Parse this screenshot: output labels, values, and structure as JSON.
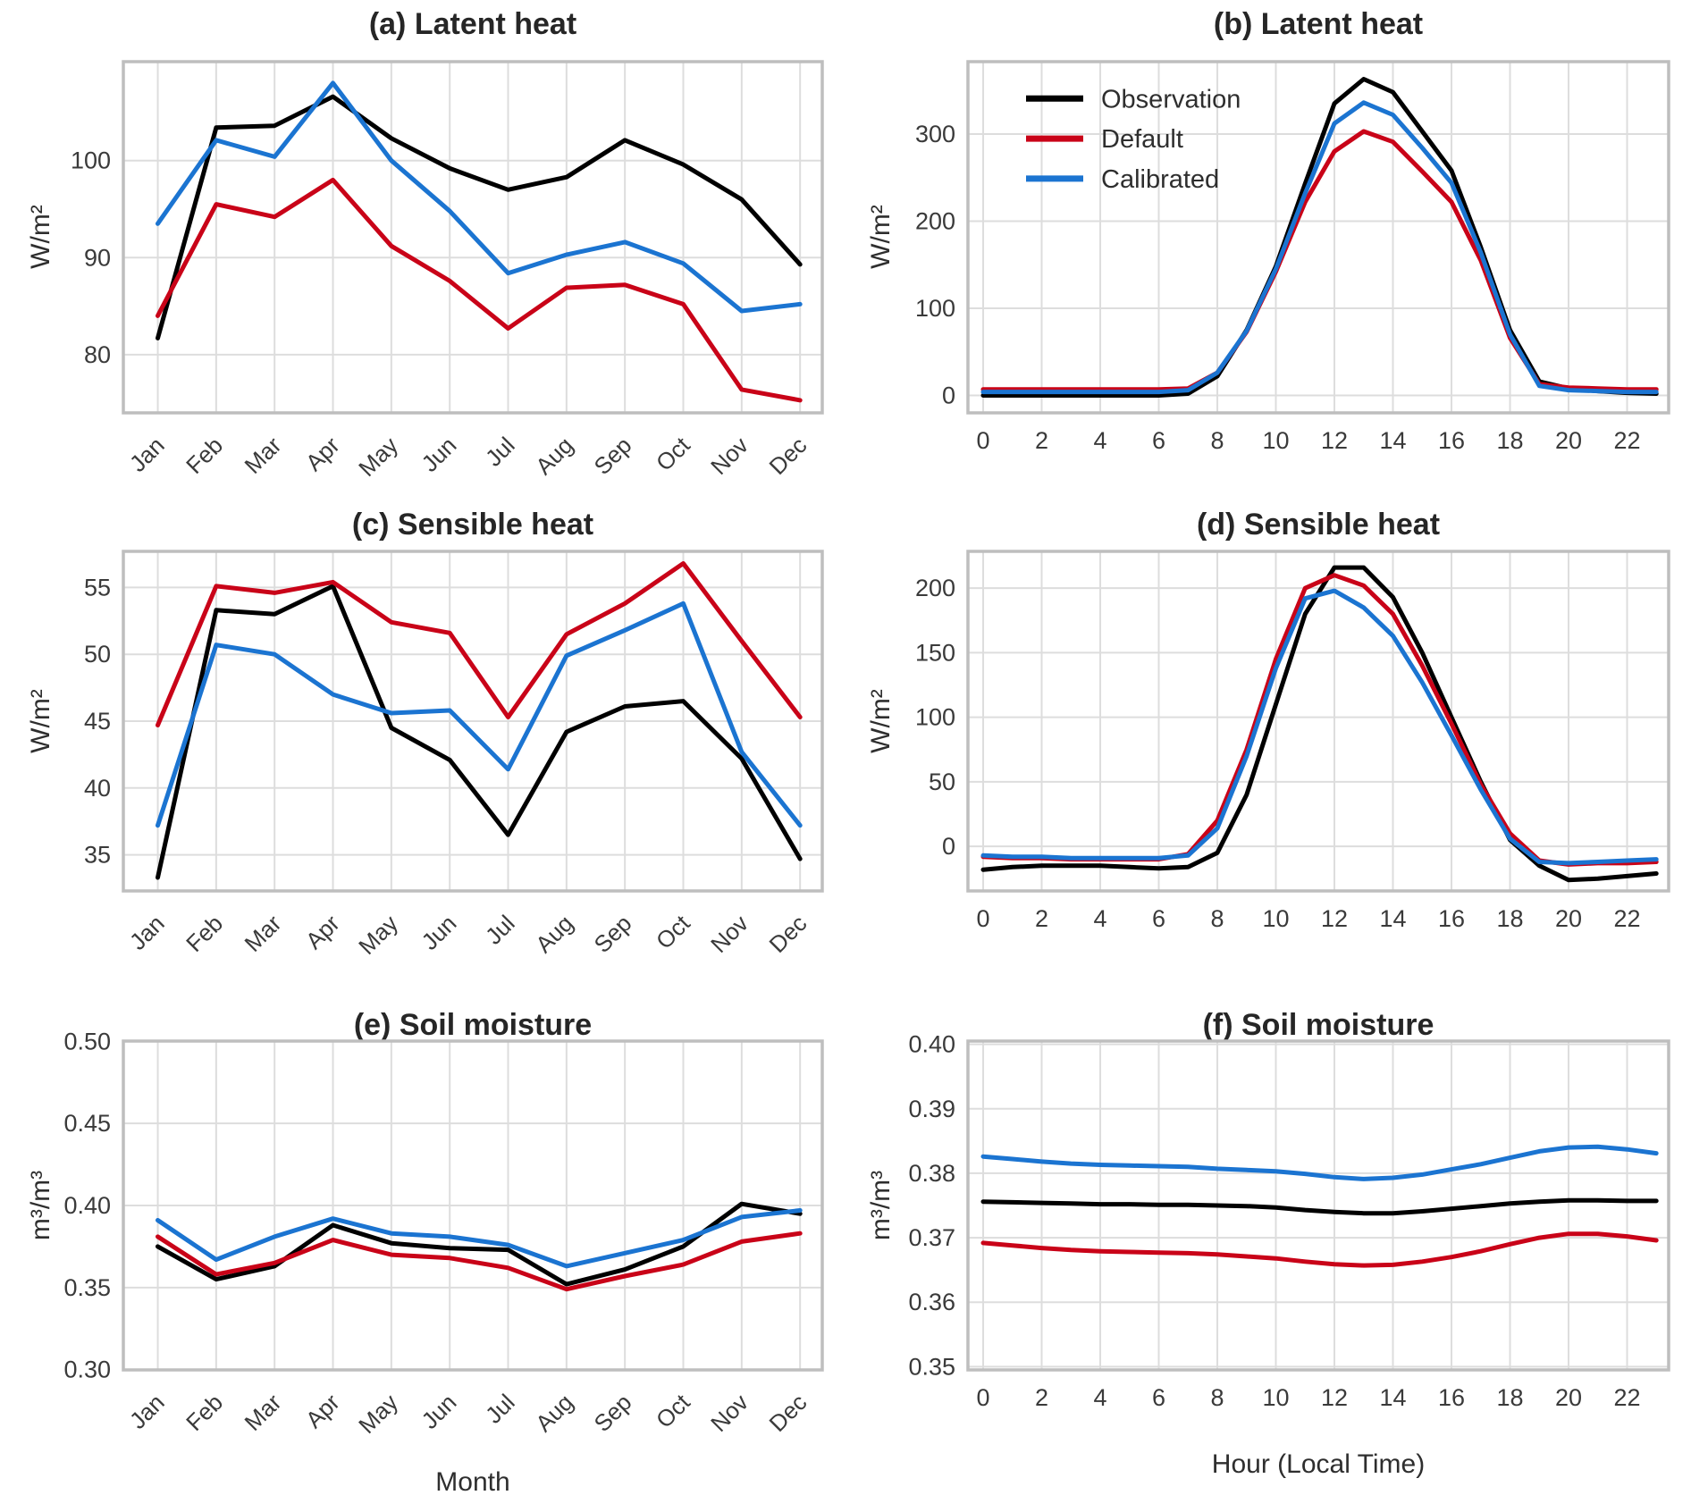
{
  "figure": {
    "colors": {
      "observation": "#000000",
      "default": "#c90318",
      "calibrated": "#1b74d1"
    },
    "grid_color": "#dddddd",
    "frame_color": "#bebebe",
    "tick_color": "#3a3a3a",
    "legend": {
      "items": [
        {
          "label": "Observation",
          "color": "observation"
        },
        {
          "label": "Default",
          "color": "default"
        },
        {
          "label": "Calibrated",
          "color": "calibrated"
        }
      ]
    }
  },
  "chart_data": [
    {
      "id": "a",
      "type": "line",
      "title": "(a) Latent heat",
      "ylabel": "W/m²",
      "xlabel": "",
      "x_mode": "month",
      "categories": [
        "Jan",
        "Feb",
        "Mar",
        "Apr",
        "May",
        "Jun",
        "Jul",
        "Aug",
        "Sep",
        "Oct",
        "Nov",
        "Dec"
      ],
      "xlim": [
        -0.59,
        11.38
      ],
      "ylim": [
        74.0,
        110.2
      ],
      "yticks": [
        80,
        90,
        100
      ],
      "ytick_labels": [
        "80",
        "90",
        "100"
      ],
      "legend": false,
      "series": [
        {
          "name": "Observation",
          "color": "observation",
          "values": [
            81.7,
            103.4,
            103.6,
            106.6,
            102.3,
            99.2,
            97.0,
            98.3,
            102.1,
            99.6,
            96.0,
            89.3
          ]
        },
        {
          "name": "Default",
          "color": "default",
          "values": [
            84.0,
            95.5,
            94.2,
            98.0,
            91.2,
            87.6,
            82.7,
            86.9,
            87.2,
            85.2,
            76.4,
            75.3
          ]
        },
        {
          "name": "Calibrated",
          "color": "calibrated",
          "values": [
            93.5,
            102.1,
            100.4,
            108.0,
            100.0,
            94.8,
            88.4,
            90.3,
            91.6,
            89.4,
            84.5,
            85.2
          ]
        }
      ]
    },
    {
      "id": "b",
      "type": "line",
      "title": "(b) Latent heat",
      "ylabel": "W/m²",
      "xlabel": "",
      "x_mode": "hour",
      "x": [
        0,
        1,
        2,
        3,
        4,
        5,
        6,
        7,
        8,
        9,
        10,
        11,
        12,
        13,
        14,
        15,
        16,
        17,
        18,
        19,
        20,
        21,
        22,
        23
      ],
      "xticks": [
        0,
        2,
        4,
        6,
        8,
        10,
        12,
        14,
        16,
        18,
        20,
        22
      ],
      "xtick_labels": [
        "0",
        "2",
        "4",
        "6",
        "8",
        "10",
        "12",
        "14",
        "16",
        "18",
        "20",
        "22"
      ],
      "xlim": [
        -0.52,
        23.42
      ],
      "ylim": [
        -20,
        383
      ],
      "yticks": [
        0,
        100,
        200,
        300
      ],
      "ytick_labels": [
        "0",
        "100",
        "200",
        "300"
      ],
      "legend": true,
      "series": [
        {
          "name": "Observation",
          "color": "observation",
          "values": [
            0,
            0,
            0,
            0,
            0,
            0,
            0,
            2,
            22,
            75,
            148,
            243,
            335,
            363,
            348,
            303,
            258,
            170,
            75,
            16,
            8,
            5,
            3,
            2
          ]
        },
        {
          "name": "Default",
          "color": "default",
          "values": [
            7,
            7,
            7,
            7,
            7,
            7,
            7,
            8,
            26,
            73,
            142,
            222,
            280,
            303,
            291,
            257,
            222,
            155,
            66,
            13,
            9,
            8,
            7,
            7
          ]
        },
        {
          "name": "Calibrated",
          "color": "calibrated",
          "values": [
            4,
            4,
            4,
            4,
            4,
            4,
            4,
            6,
            26,
            74,
            145,
            232,
            312,
            336,
            322,
            284,
            244,
            164,
            70,
            11,
            6,
            5,
            4,
            4
          ]
        }
      ]
    },
    {
      "id": "c",
      "type": "line",
      "title": "(c) Sensible heat",
      "ylabel": "W/m²",
      "xlabel": "",
      "x_mode": "month",
      "categories": [
        "Jan",
        "Feb",
        "Mar",
        "Apr",
        "May",
        "Jun",
        "Jul",
        "Aug",
        "Sep",
        "Oct",
        "Nov",
        "Dec"
      ],
      "xlim": [
        -0.59,
        11.38
      ],
      "ylim": [
        32.3,
        57.7
      ],
      "yticks": [
        35,
        40,
        45,
        50,
        55
      ],
      "ytick_labels": [
        "35",
        "40",
        "45",
        "50",
        "55"
      ],
      "legend": false,
      "series": [
        {
          "name": "Observation",
          "color": "observation",
          "values": [
            33.3,
            53.3,
            53.0,
            55.1,
            44.5,
            42.1,
            36.5,
            44.2,
            46.1,
            46.5,
            42.2,
            34.7
          ]
        },
        {
          "name": "Default",
          "color": "default",
          "values": [
            44.7,
            55.1,
            54.6,
            55.4,
            52.4,
            51.6,
            45.3,
            51.5,
            53.8,
            56.8,
            51.0,
            45.3
          ]
        },
        {
          "name": "Calibrated",
          "color": "calibrated",
          "values": [
            37.2,
            50.7,
            50.0,
            47.0,
            45.6,
            45.8,
            41.4,
            49.9,
            51.8,
            53.8,
            42.7,
            37.2
          ]
        }
      ]
    },
    {
      "id": "d",
      "type": "line",
      "title": "(d) Sensible heat",
      "ylabel": "W/m²",
      "xlabel": "",
      "x_mode": "hour",
      "x": [
        0,
        1,
        2,
        3,
        4,
        5,
        6,
        7,
        8,
        9,
        10,
        11,
        12,
        13,
        14,
        15,
        16,
        17,
        18,
        19,
        20,
        21,
        22,
        23
      ],
      "xticks": [
        0,
        2,
        4,
        6,
        8,
        10,
        12,
        14,
        16,
        18,
        20,
        22
      ],
      "xtick_labels": [
        "0",
        "2",
        "4",
        "6",
        "8",
        "10",
        "12",
        "14",
        "16",
        "18",
        "20",
        "22"
      ],
      "xlim": [
        -0.52,
        23.42
      ],
      "ylim": [
        -34.5,
        228.5
      ],
      "yticks": [
        0,
        50,
        100,
        150,
        200
      ],
      "ytick_labels": [
        "0",
        "50",
        "100",
        "150",
        "200"
      ],
      "legend": false,
      "series": [
        {
          "name": "Observation",
          "color": "observation",
          "values": [
            -18,
            -16,
            -15,
            -15,
            -15,
            -16,
            -17,
            -16,
            -5,
            40,
            110,
            180,
            216,
            216,
            193,
            150,
            100,
            50,
            5,
            -15,
            -26,
            -25,
            -23,
            -21
          ]
        },
        {
          "name": "Default",
          "color": "default",
          "values": [
            -8,
            -9,
            -9,
            -10,
            -10,
            -10,
            -10,
            -6,
            20,
            75,
            145,
            200,
            210,
            202,
            180,
            140,
            95,
            48,
            10,
            -11,
            -14,
            -13,
            -13,
            -12
          ]
        },
        {
          "name": "Calibrated",
          "color": "calibrated",
          "values": [
            -7,
            -8,
            -8,
            -9,
            -9,
            -9,
            -9,
            -7,
            14,
            70,
            138,
            192,
            198,
            185,
            163,
            127,
            86,
            44,
            6,
            -12,
            -13,
            -12,
            -11,
            -10
          ]
        }
      ]
    },
    {
      "id": "e",
      "type": "line",
      "title": "(e) Soil moisture",
      "ylabel": "m³/m³",
      "xlabel": "Month",
      "x_mode": "month",
      "categories": [
        "Jan",
        "Feb",
        "Mar",
        "Apr",
        "May",
        "Jun",
        "Jul",
        "Aug",
        "Sep",
        "Oct",
        "Nov",
        "Dec"
      ],
      "xlim": [
        -0.59,
        11.38
      ],
      "ylim": [
        0.2998,
        0.5002
      ],
      "yticks": [
        0.3,
        0.35,
        0.4,
        0.45,
        0.5
      ],
      "ytick_labels": [
        "0.30",
        "0.35",
        "0.40",
        "0.45",
        "0.50"
      ],
      "legend": false,
      "series": [
        {
          "name": "Observation",
          "color": "observation",
          "values": [
            0.375,
            0.355,
            0.363,
            0.388,
            0.377,
            0.374,
            0.373,
            0.352,
            0.361,
            0.375,
            0.401,
            0.395
          ]
        },
        {
          "name": "Default",
          "color": "default",
          "values": [
            0.381,
            0.358,
            0.365,
            0.379,
            0.37,
            0.368,
            0.362,
            0.349,
            0.357,
            0.364,
            0.378,
            0.383
          ]
        },
        {
          "name": "Calibrated",
          "color": "calibrated",
          "values": [
            0.391,
            0.367,
            0.381,
            0.392,
            0.383,
            0.381,
            0.376,
            0.363,
            0.371,
            0.379,
            0.393,
            0.397
          ]
        }
      ]
    },
    {
      "id": "f",
      "type": "line",
      "title": "(f) Soil moisture",
      "ylabel": "m³/m³",
      "xlabel": "Hour (Local Time)",
      "x_mode": "hour",
      "x": [
        0,
        1,
        2,
        3,
        4,
        5,
        6,
        7,
        8,
        9,
        10,
        11,
        12,
        13,
        14,
        15,
        16,
        17,
        18,
        19,
        20,
        21,
        22,
        23
      ],
      "xticks": [
        0,
        2,
        4,
        6,
        8,
        10,
        12,
        14,
        16,
        18,
        20,
        22
      ],
      "xtick_labels": [
        "0",
        "2",
        "4",
        "6",
        "8",
        "10",
        "12",
        "14",
        "16",
        "18",
        "20",
        "22"
      ],
      "xlim": [
        -0.52,
        23.42
      ],
      "ylim": [
        0.3495,
        0.4005
      ],
      "yticks": [
        0.35,
        0.36,
        0.37,
        0.38,
        0.39,
        0.4
      ],
      "ytick_labels": [
        "0.35",
        "0.36",
        "0.37",
        "0.38",
        "0.39",
        "0.40"
      ],
      "legend": false,
      "series": [
        {
          "name": "Observation",
          "color": "observation",
          "values": [
            0.3756,
            0.3755,
            0.3754,
            0.3753,
            0.3752,
            0.3752,
            0.3751,
            0.3751,
            0.375,
            0.3749,
            0.3747,
            0.3743,
            0.374,
            0.3738,
            0.3738,
            0.3741,
            0.3745,
            0.3749,
            0.3753,
            0.3756,
            0.3758,
            0.3758,
            0.3757,
            0.3757
          ]
        },
        {
          "name": "Default",
          "color": "default",
          "values": [
            0.3692,
            0.3688,
            0.3684,
            0.3681,
            0.3679,
            0.3678,
            0.3677,
            0.3676,
            0.3674,
            0.3671,
            0.3668,
            0.3663,
            0.3659,
            0.3657,
            0.3658,
            0.3663,
            0.367,
            0.3679,
            0.369,
            0.37,
            0.3706,
            0.3706,
            0.3702,
            0.3696
          ]
        },
        {
          "name": "Calibrated",
          "color": "calibrated",
          "values": [
            0.3826,
            0.3822,
            0.3818,
            0.3815,
            0.3813,
            0.3812,
            0.3811,
            0.381,
            0.3807,
            0.3805,
            0.3803,
            0.3799,
            0.3794,
            0.3791,
            0.3793,
            0.3798,
            0.3806,
            0.3814,
            0.3824,
            0.3834,
            0.384,
            0.3841,
            0.3837,
            0.3831
          ]
        }
      ]
    }
  ]
}
